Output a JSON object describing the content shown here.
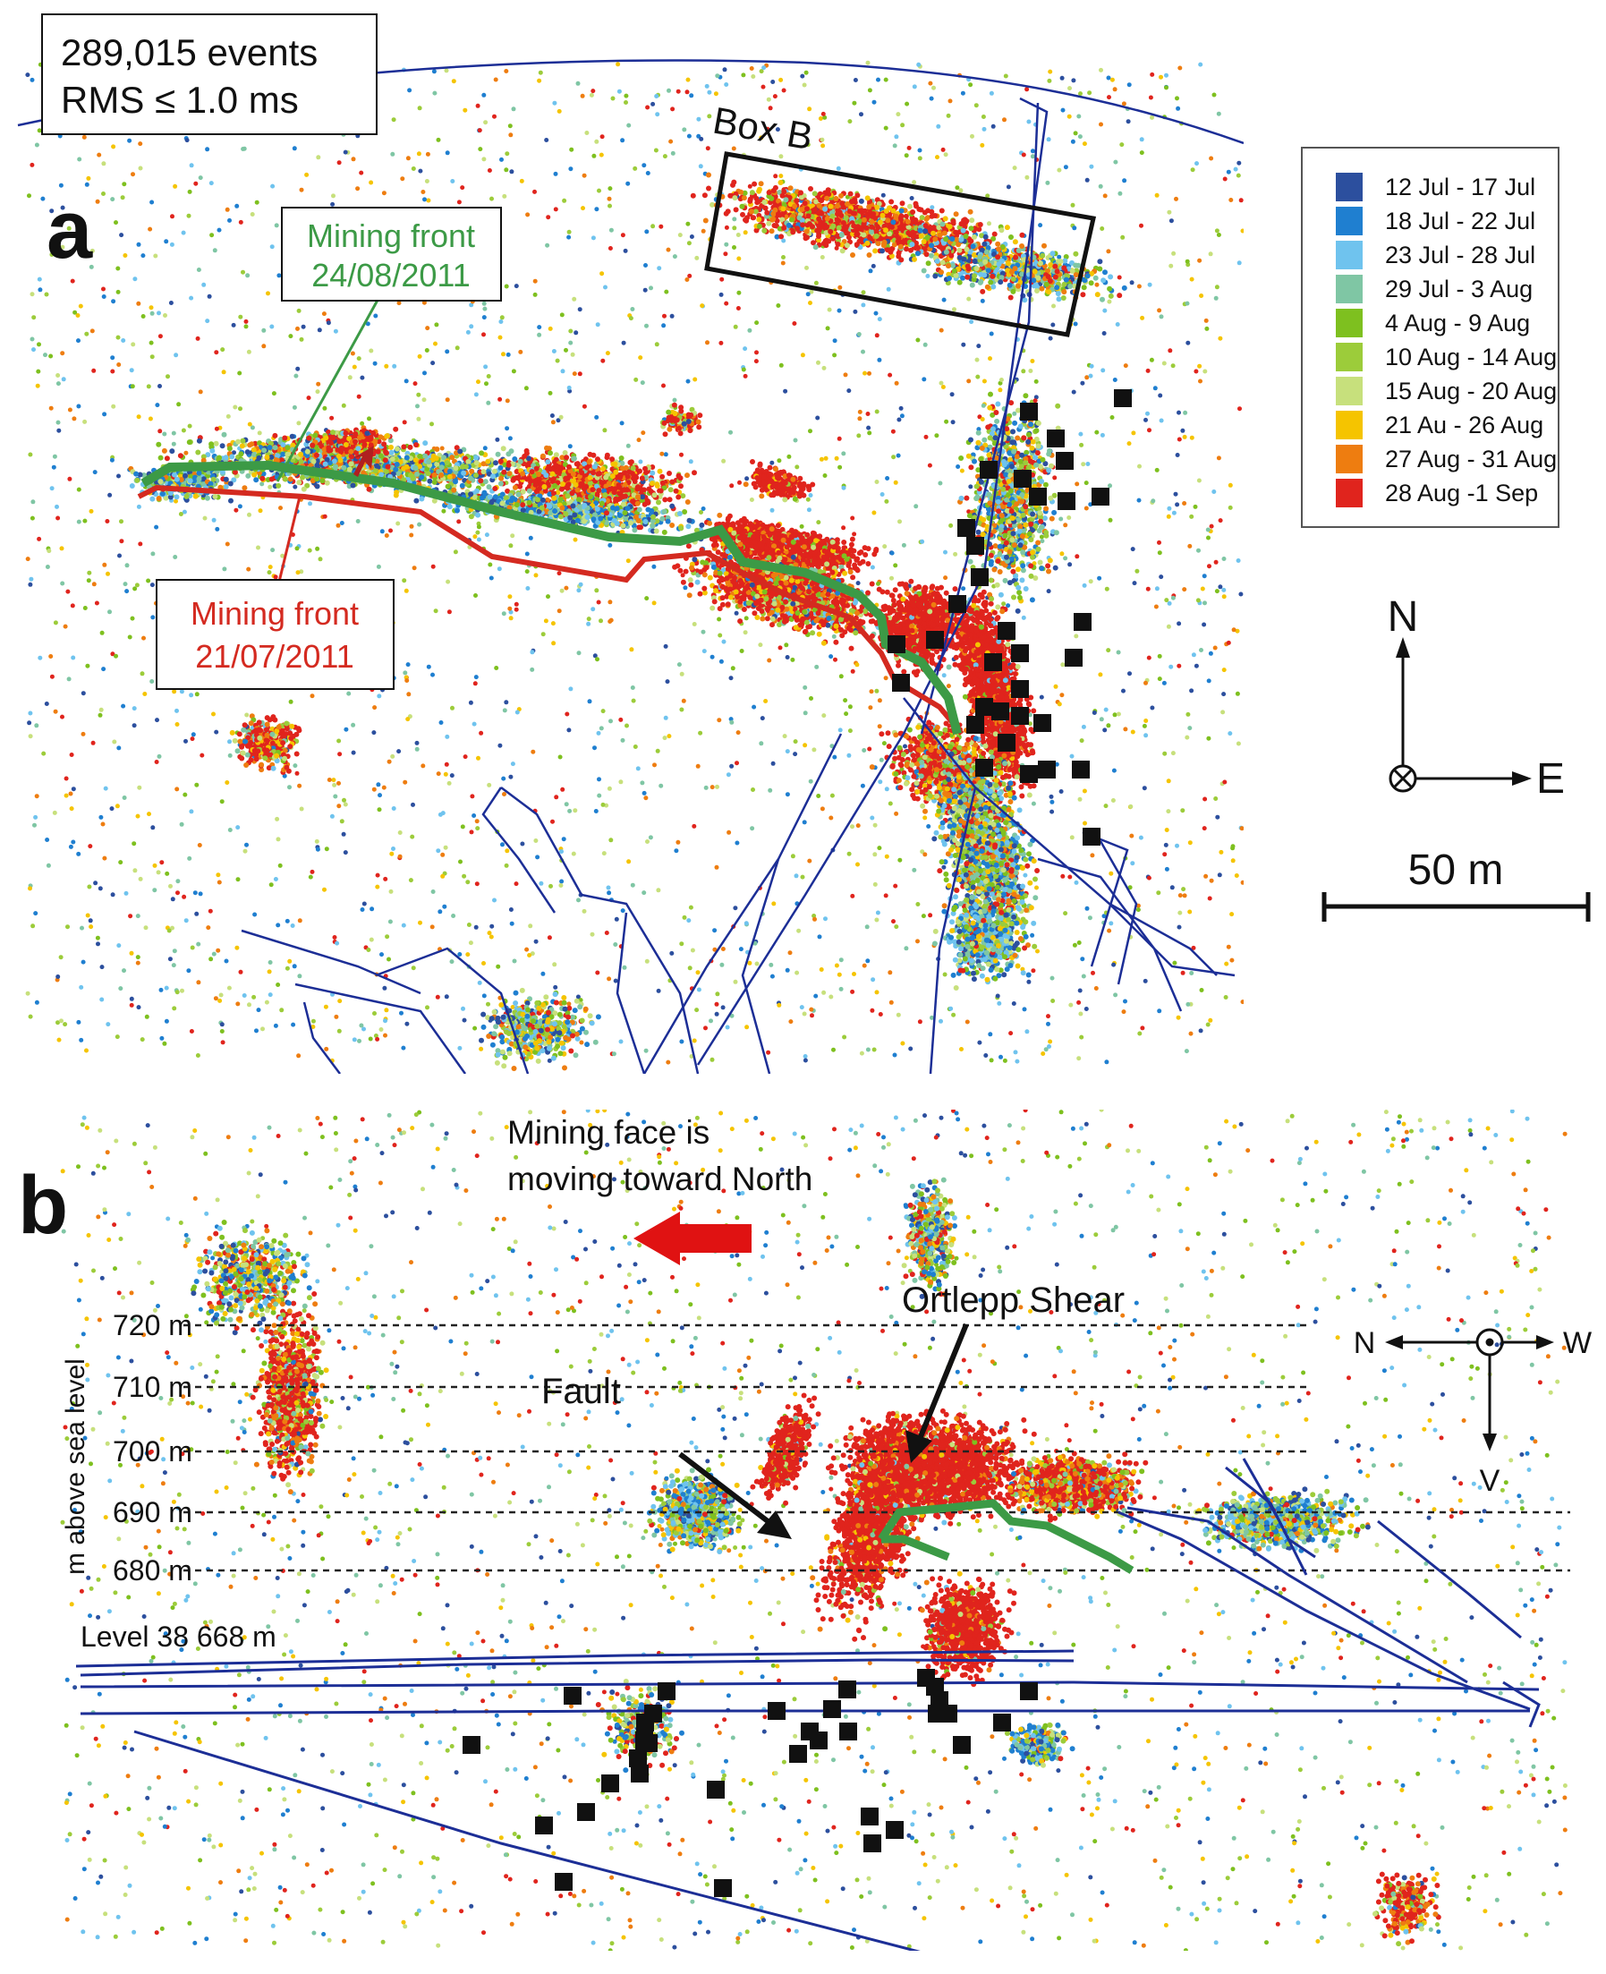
{
  "summary": {
    "line1": "289,015 events",
    "line2": "RMS ≤ 1.0 ms"
  },
  "panel_a": {
    "label": "a",
    "box_b": "Box B",
    "green_front": {
      "line1": "Mining front",
      "line2": "24/08/2011",
      "color": "#3c9a46"
    },
    "red_front": {
      "line1": "Mining front",
      "line2": "21/07/2011",
      "color": "#d42a20"
    },
    "compass": {
      "north": "N",
      "east": "E"
    },
    "scale_bar": "50 m"
  },
  "legend": {
    "items": [
      {
        "label": "12  Jul  -  17  Jul",
        "color": "#2c4f9e"
      },
      {
        "label": "18  Jul  -  22  Jul",
        "color": "#1f7fd0"
      },
      {
        "label": "23  Jul  -  28  Jul",
        "color": "#6fc3ee"
      },
      {
        "label": "29  Jul  -  3  Aug",
        "color": "#7fc6a4"
      },
      {
        "label": "4   Aug  -  9  Aug",
        "color": "#7ec01f"
      },
      {
        "label": "10  Aug  -  14  Aug",
        "color": "#9ccc3a"
      },
      {
        "label": "15  Aug  -  20  Aug",
        "color": "#c7e07c"
      },
      {
        "label": "21  Au  -  26  Aug",
        "color": "#f5c400"
      },
      {
        "label": "27  Aug  -  31  Aug",
        "color": "#ee7d10"
      },
      {
        "label": "28  Aug  -1  Sep",
        "color": "#e0241d"
      }
    ]
  },
  "panel_b": {
    "label": "b",
    "arrow_text": {
      "line1": "Mining face is",
      "line2": "moving toward North"
    },
    "ortlepp": "Ortlepp Shear",
    "fault": "Fault",
    "ylabel": "m above sea level",
    "levels": [
      "720 m",
      "710 m",
      "700 m",
      "690 m",
      "680 m"
    ],
    "level_line": "Level 38 668 m",
    "compass": {
      "north": "N",
      "west": "W",
      "vertical": "V"
    }
  }
}
